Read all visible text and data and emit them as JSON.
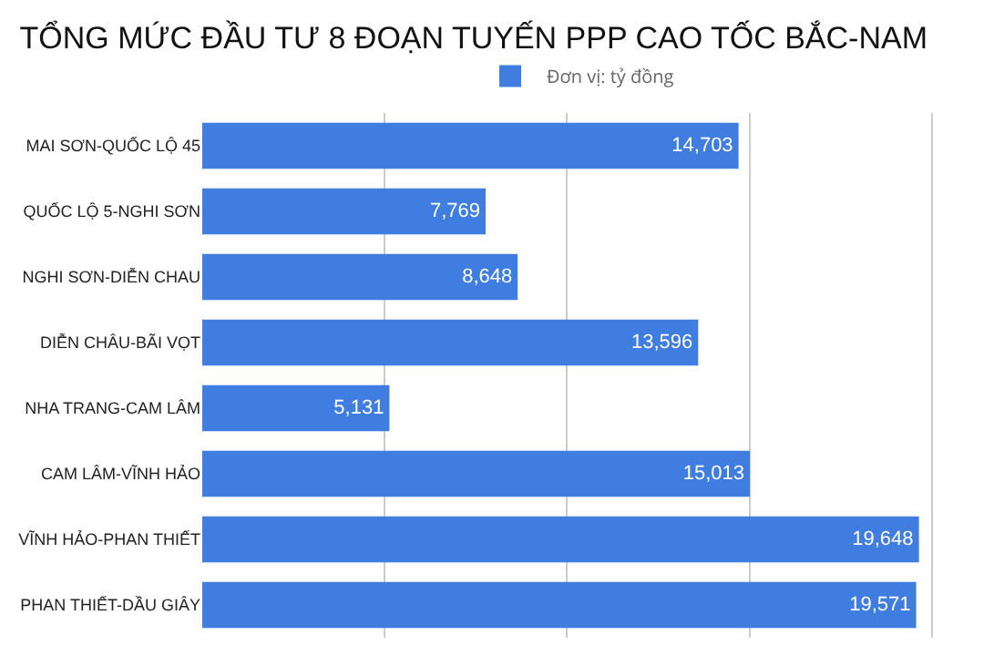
{
  "chart_data": {
    "type": "bar",
    "orientation": "horizontal",
    "title": "TỔNG MỨC ĐẦU TƯ 8 ĐOẠN TUYẾN PPP CAO TỐC BẮC-NAM",
    "categories": [
      "MAI SƠN-QUỐC LỘ 45",
      "QUỐC LỘ 5-NGHI SƠN",
      "NGHI SƠN-DIỄN CHAU",
      "DIỄN CHÂU-BÃI VỌT",
      "NHA TRANG-CAM LÂM",
      "CAM LÂM-VĨNH HẢO",
      "VĨNH HẢO-PHAN THIẾT",
      "PHAN THIẾT-DẦU GIÂY"
    ],
    "series": [
      {
        "name": "Đơn vị: tỷ đồng",
        "color": "#3f7de0",
        "values": [
          14703,
          7769,
          8648,
          13596,
          5131,
          15013,
          19648,
          19571
        ],
        "value_labels": [
          "14,703",
          "7,769",
          "8,648",
          "13,596",
          "5,131",
          "15,013",
          "19,648",
          "19,571"
        ]
      }
    ],
    "tick_labels": "y",
    "grid": "x",
    "legend": "top"
  }
}
